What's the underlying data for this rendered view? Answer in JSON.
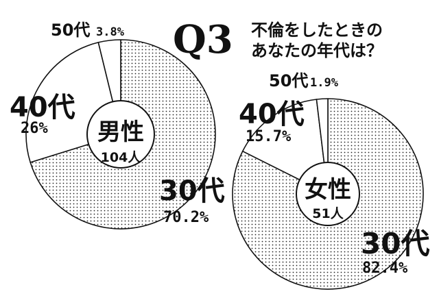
{
  "question": {
    "label": "Q3",
    "line1": "不倫をしたときの",
    "line2": "あなたの年代は？"
  },
  "chart_data": [
    {
      "type": "pie",
      "center_title": "男性",
      "center_count": "104人",
      "slices": [
        {
          "label": "30代",
          "value": 70.2,
          "value_text": "70.2%",
          "fill": "dots"
        },
        {
          "label": "40代",
          "value": 26,
          "value_text": "26%",
          "fill": "white"
        },
        {
          "label": "50代",
          "value": 3.8,
          "value_text": "3.8%",
          "fill": "white"
        }
      ]
    },
    {
      "type": "pie",
      "center_title": "女性",
      "center_count": "51人",
      "slices": [
        {
          "label": "30代",
          "value": 82.4,
          "value_text": "82.4%",
          "fill": "dots"
        },
        {
          "label": "40代",
          "value": 15.7,
          "value_text": "15.7%",
          "fill": "white"
        },
        {
          "label": "50代",
          "value": 1.9,
          "value_text": "1.9%",
          "fill": "white"
        }
      ]
    }
  ]
}
